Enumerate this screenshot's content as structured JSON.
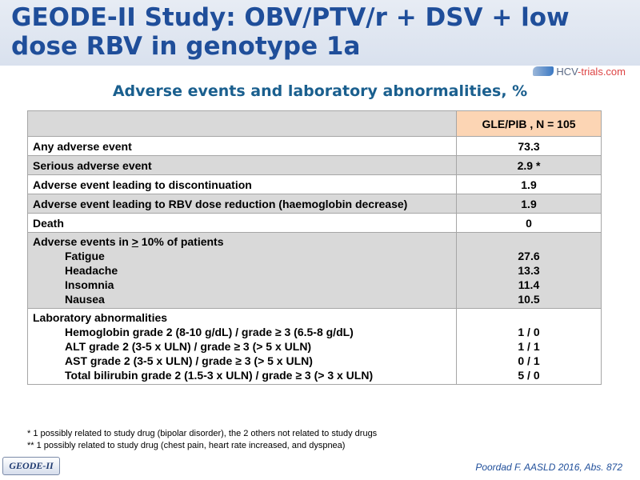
{
  "slide": {
    "title": "GEODE-II Study: OBV/PTV/r + DSV + low dose RBV in genotype 1a",
    "logo_text_a": "HCV",
    "logo_text_b": "-trials.com",
    "subtitle": "Adverse events and laboratory abnormalities, %",
    "table": {
      "column_header": "GLE/PIB , N = 105",
      "rows": [
        {
          "label": "Any adverse event",
          "value": "73.3"
        },
        {
          "label": "Serious adverse event",
          "value": "2.9 *"
        },
        {
          "label": "Adverse event leading to discontinuation",
          "value": "1.9"
        },
        {
          "label": "Adverse event leading to RBV dose reduction (haemoglobin decrease)",
          "value": "1.9"
        },
        {
          "label": "Death",
          "value": "0"
        }
      ],
      "ae_group": {
        "heading_prefix": "Adverse events in ",
        "heading_gt": ">",
        "heading_suffix": " 10% of patients",
        "items": [
          {
            "label": "Fatigue",
            "value": "27.6"
          },
          {
            "label": "Headache",
            "value": "13.3"
          },
          {
            "label": "Insomnia",
            "value": "11.4"
          },
          {
            "label": "Nausea",
            "value": "10.5"
          }
        ]
      },
      "lab_group": {
        "heading": "Laboratory abnormalities",
        "items": [
          {
            "label": "Hemoglobin grade 2 (8-10 g/dL) / grade ≥ 3 (6.5-8 g/dL)",
            "value": "1 / 0"
          },
          {
            "label": "ALT grade 2 (3-5 x ULN) / grade ≥ 3 (> 5 x ULN)",
            "value": "1 / 1"
          },
          {
            "label": "AST grade 2 (3-5 x ULN) / grade ≥ 3 (> 5 x ULN)",
            "value": "0 / 1"
          },
          {
            "label": "Total bilirubin grade 2 (1.5-3 x ULN) / grade ≥ 3 (> 3 x ULN)",
            "value": "5 / 0"
          }
        ]
      }
    },
    "footnotes": [
      "* 1 possibly related to study drug (bipolar disorder), the 2 others not related to study drugs",
      "** 1 possibly related to study drug (chest pain, heart rate increased, and dyspnea)"
    ],
    "badge": "GEODE-II",
    "citation": "Poordad F. AASLD 2016, Abs. 872",
    "colors": {
      "title": "#1f4e9a",
      "subtitle": "#1a5f8e",
      "header_cell": "#fcd5b4",
      "shaded_row": "#d9d9d9",
      "citation": "#1f4e9a"
    },
    "icons": [
      "hcv-trials-logo-icon"
    ]
  }
}
